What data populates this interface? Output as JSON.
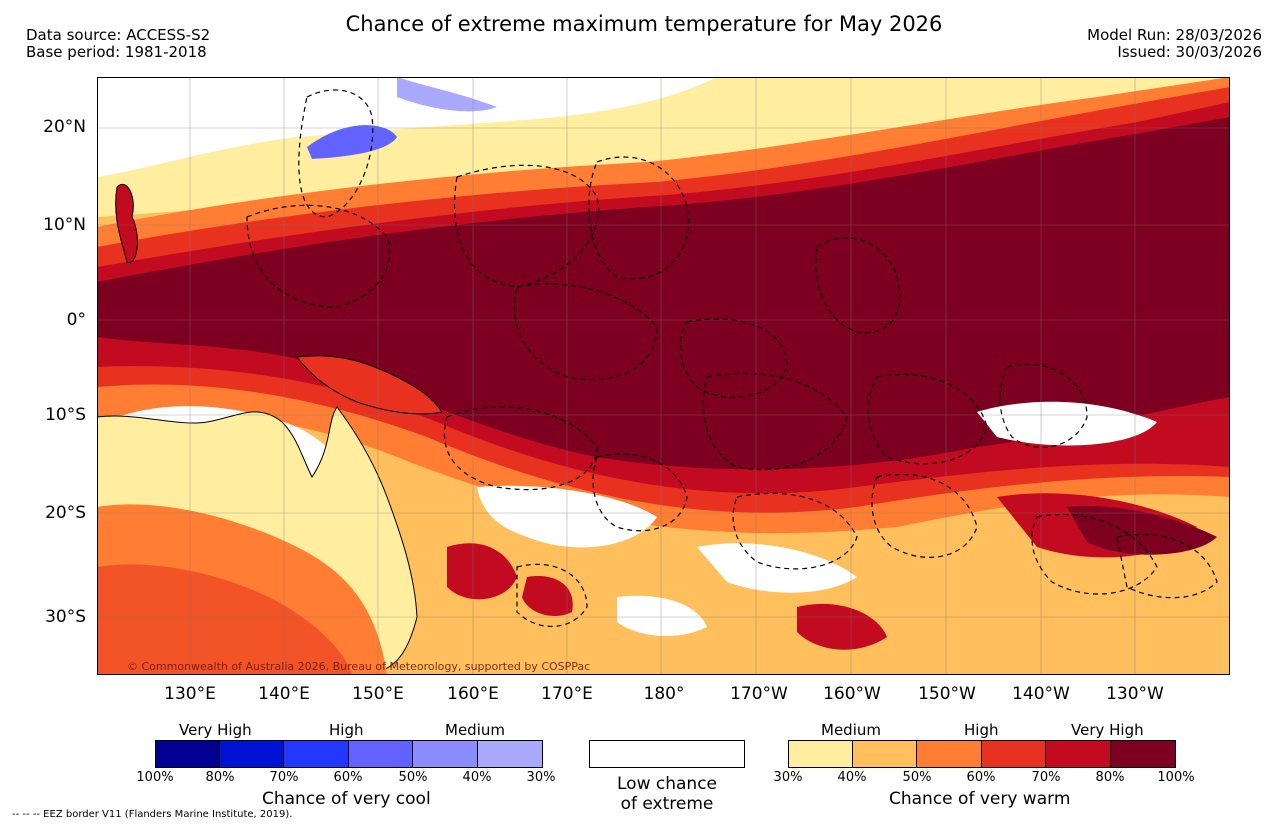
{
  "header": {
    "title": "Chance of extreme maximum temperature for May 2026",
    "data_source": "Data source: ACCESS-S2",
    "base_period": "Base period: 1981-2018",
    "model_run": "Model Run: 28/03/2026",
    "issued": "Issued: 30/03/2026"
  },
  "axes": {
    "lat_labels": [
      "20°N",
      "10°N",
      "0°",
      "10°S",
      "20°S",
      "30°S"
    ],
    "lon_labels": [
      "130°E",
      "140°E",
      "150°E",
      "160°E",
      "170°E",
      "180°",
      "170°W",
      "160°W",
      "150°W",
      "140°W",
      "130°W"
    ]
  },
  "map": {
    "copyright": "© Commonwealth of Australia 2026, Bureau of Meteorology, supported by COSPPac",
    "eez_note": "--  --  -- EEZ border V11 (Flanders Marine Institute, 2019)."
  },
  "legend": {
    "cool": {
      "categories": [
        "Very High",
        "High",
        "Medium"
      ],
      "ticks": [
        "100%",
        "80%",
        "70%",
        "60%",
        "50%",
        "40%",
        "30%"
      ],
      "colors": [
        "#000093",
        "#0012d6",
        "#2237ff",
        "#6162ff",
        "#8b8cff",
        "#a9aaff"
      ],
      "caption": "Chance of very cool"
    },
    "low": {
      "caption_line1": "Low chance",
      "caption_line2": "of extreme"
    },
    "warm": {
      "categories": [
        "Medium",
        "High",
        "Very High"
      ],
      "ticks": [
        "30%",
        "40%",
        "50%",
        "60%",
        "70%",
        "80%",
        "100%"
      ],
      "colors": [
        "#ffeea0",
        "#ffbf5c",
        "#ff7e33",
        "#e8321f",
        "#c20b20",
        "#7e0021"
      ],
      "caption": "Chance of very warm"
    }
  }
}
